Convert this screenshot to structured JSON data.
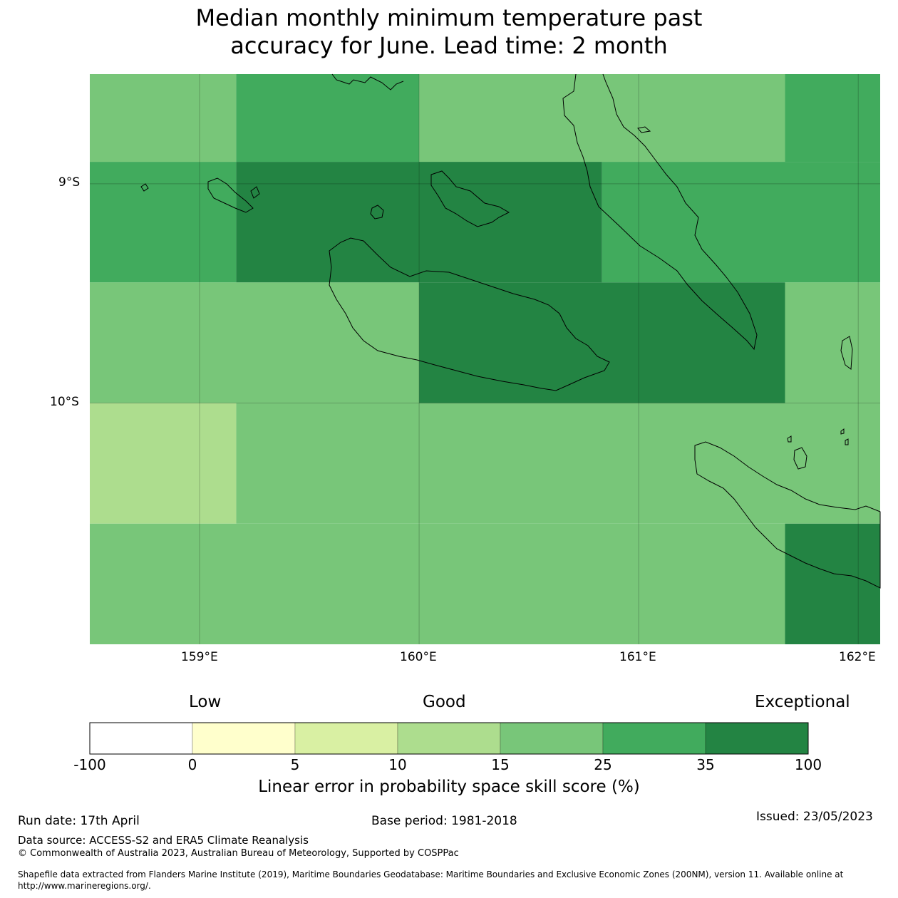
{
  "title_line1": "Median monthly minimum temperature past",
  "title_line2": "accuracy for June. Lead time: 2 month",
  "map": {
    "lon_ticks": [
      "159°E",
      "160°E",
      "161°E",
      "162°E"
    ],
    "lat_ticks": [
      "9°S",
      "10°S"
    ],
    "lon_range": [
      158.5,
      162.1
    ],
    "lat_range": [
      -11.1,
      -8.5
    ],
    "grid": true,
    "cells": [
      {
        "lon": [
          158.5,
          159.1667
        ],
        "lat": [
          -8.9,
          -8.5
        ],
        "level": 4
      },
      {
        "lon": [
          159.1667,
          160.0
        ],
        "lat": [
          -8.9,
          -8.5
        ],
        "level": 5
      },
      {
        "lon": [
          160.0,
          161.6667
        ],
        "lat": [
          -8.9,
          -8.5
        ],
        "level": 4
      },
      {
        "lon": [
          161.6667,
          162.1
        ],
        "lat": [
          -8.9,
          -8.5
        ],
        "level": 5
      },
      {
        "lon": [
          158.5,
          159.1667
        ],
        "lat": [
          -9.45,
          -8.9
        ],
        "level": 5
      },
      {
        "lon": [
          159.1667,
          160.8333
        ],
        "lat": [
          -9.45,
          -8.9
        ],
        "level": 6
      },
      {
        "lon": [
          160.8333,
          162.1
        ],
        "lat": [
          -9.45,
          -8.9
        ],
        "level": 5
      },
      {
        "lon": [
          158.5,
          160.0
        ],
        "lat": [
          -10.0,
          -9.45
        ],
        "level": 4
      },
      {
        "lon": [
          160.0,
          161.6667
        ],
        "lat": [
          -10.0,
          -9.45
        ],
        "level": 6
      },
      {
        "lon": [
          161.6667,
          162.1
        ],
        "lat": [
          -10.0,
          -9.45
        ],
        "level": 4
      },
      {
        "lon": [
          158.5,
          159.1667
        ],
        "lat": [
          -10.55,
          -10.0
        ],
        "level": 3
      },
      {
        "lon": [
          159.1667,
          162.1
        ],
        "lat": [
          -10.55,
          -10.0
        ],
        "level": 4
      },
      {
        "lon": [
          158.5,
          161.6667
        ],
        "lat": [
          -11.1,
          -10.55
        ],
        "level": 4
      },
      {
        "lon": [
          161.6667,
          162.1
        ],
        "lat": [
          -11.1,
          -10.55
        ],
        "level": 6
      }
    ]
  },
  "colorbar": {
    "categories": [
      "Low",
      "Good",
      "Exceptional"
    ],
    "ticks": [
      "-100",
      "0",
      "5",
      "10",
      "15",
      "25",
      "35",
      "100"
    ],
    "colors": [
      "#ffffff",
      "#ffffcc",
      "#d9f0a3",
      "#addd8e",
      "#78c679",
      "#41ab5d",
      "#238443"
    ],
    "label": "Linear error in probability space skill score (%)"
  },
  "footer": {
    "run_date": "Run date: 17th April",
    "base_period": "Base period: 1981-2018",
    "issued": "Issued: 23/05/2023",
    "data_source": "Data source: ACCESS-S2 and ERA5 Climate Reanalysis",
    "copyright": "© Commonwealth of Australia 2023, Australian Bureau of Meteorology, Supported by COSPPac",
    "shapefile_line1": "Shapefile data extracted from Flanders Marine Institute (2019), Maritime Boundaries Geodatabase: Maritime Boundaries and Exclusive Economic Zones (200NM), version 11. Available online at",
    "shapefile_line2": "http://www.marineregions.org/."
  }
}
